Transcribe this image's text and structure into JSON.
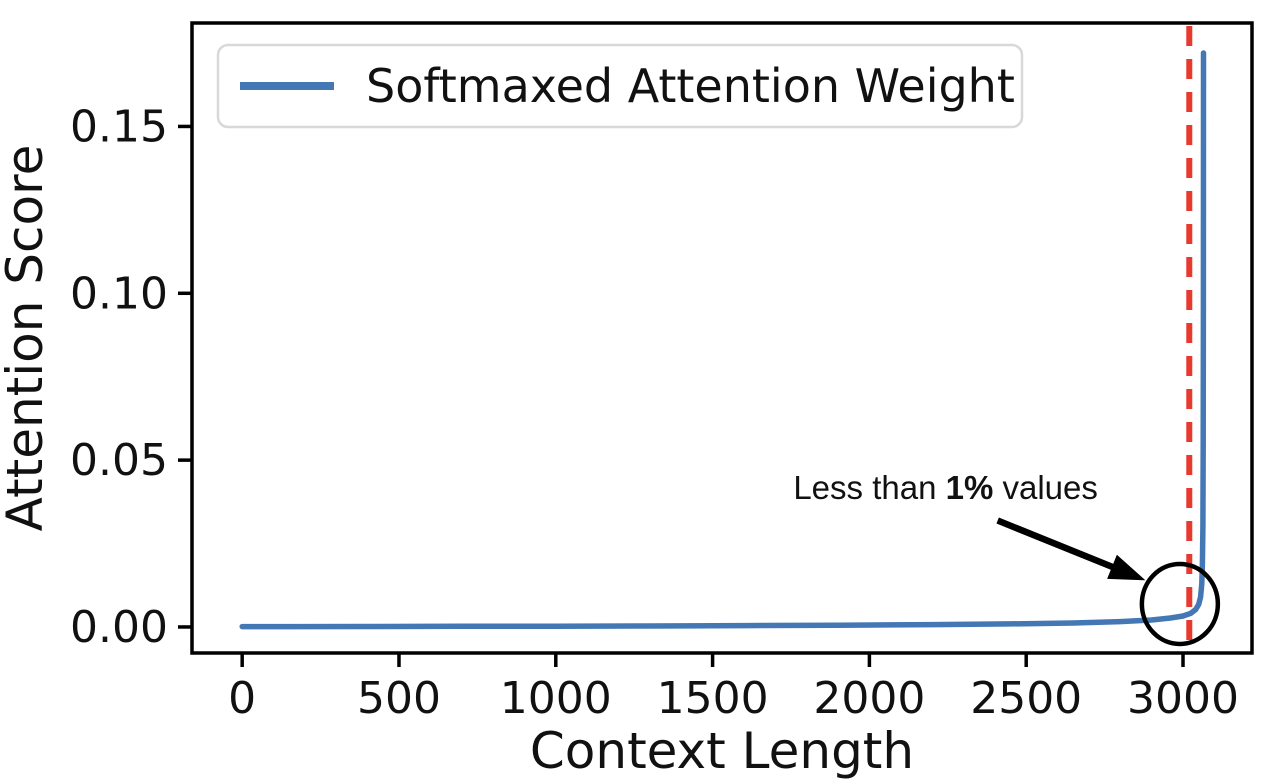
{
  "figure": {
    "background": "#ffffff",
    "frame_color": "#000000"
  },
  "chart_data": {
    "type": "line",
    "title": "",
    "xlabel": "Context Length",
    "ylabel": "Attention Score",
    "grid": false,
    "xlim": [
      -160,
      3220
    ],
    "ylim": [
      -0.0078,
      0.181
    ],
    "x_ticks": [
      {
        "v": 0,
        "label": "0"
      },
      {
        "v": 500,
        "label": "500"
      },
      {
        "v": 1000,
        "label": "1000"
      },
      {
        "v": 1500,
        "label": "1500"
      },
      {
        "v": 2000,
        "label": "2000"
      },
      {
        "v": 2500,
        "label": "2500"
      },
      {
        "v": 3000,
        "label": "3000"
      }
    ],
    "y_ticks": [
      {
        "v": 0.0,
        "label": "0.00"
      },
      {
        "v": 0.05,
        "label": "0.05"
      },
      {
        "v": 0.1,
        "label": "0.10"
      },
      {
        "v": 0.15,
        "label": "0.15"
      }
    ],
    "legend": {
      "position": "upper left",
      "entries": [
        {
          "label": "Softmaxed Attention Weight",
          "color": "#4478b5"
        }
      ]
    },
    "series": [
      {
        "name": "Softmaxed Attention Weight",
        "color": "#4478b5",
        "points": [
          [
            0,
            0.0001
          ],
          [
            150,
            0.00012
          ],
          [
            400,
            0.00015
          ],
          [
            700,
            0.00019
          ],
          [
            1000,
            0.00024
          ],
          [
            1300,
            0.0003
          ],
          [
            1600,
            0.0004
          ],
          [
            1900,
            0.00052
          ],
          [
            2200,
            0.0007
          ],
          [
            2450,
            0.00092
          ],
          [
            2650,
            0.0012
          ],
          [
            2800,
            0.0016
          ],
          [
            2900,
            0.0021
          ],
          [
            2960,
            0.0027
          ],
          [
            3000,
            0.0033
          ],
          [
            3025,
            0.0041
          ],
          [
            3040,
            0.0052
          ],
          [
            3050,
            0.0068
          ],
          [
            3056,
            0.009
          ],
          [
            3060,
            0.013
          ],
          [
            3062,
            0.019
          ],
          [
            3063.5,
            0.03
          ],
          [
            3064.5,
            0.055
          ],
          [
            3065,
            0.1
          ],
          [
            3065.3,
            0.172
          ]
        ]
      }
    ],
    "vline": {
      "x": 3020,
      "color": "#e8392e",
      "style": "dashed"
    },
    "annotation": {
      "text": "Less than 1% values",
      "prefix": "Less than ",
      "bold": "1%",
      "suffix": " values",
      "text_color": "#111111",
      "text_pos": [
        2243,
        0.042
      ],
      "arrow_from": [
        2409,
        0.0319
      ],
      "arrow_to": [
        2880,
        0.014
      ],
      "circle_center": [
        2990,
        0.0069
      ],
      "circle_radius_px": [
        38,
        40
      ],
      "shape_color": "#000000"
    }
  }
}
